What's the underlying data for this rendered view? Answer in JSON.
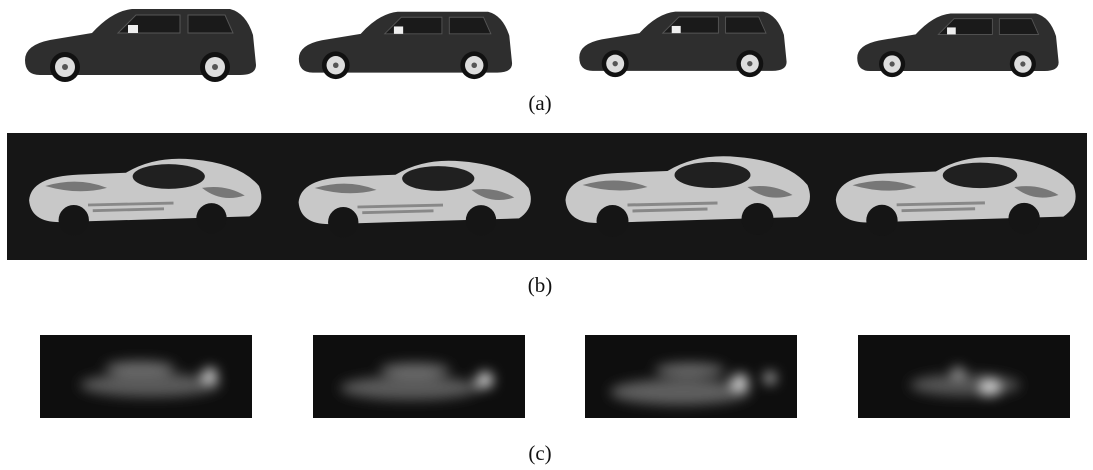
{
  "captions": {
    "a": "(a)",
    "b": "(b)",
    "c": "(c)"
  }
}
